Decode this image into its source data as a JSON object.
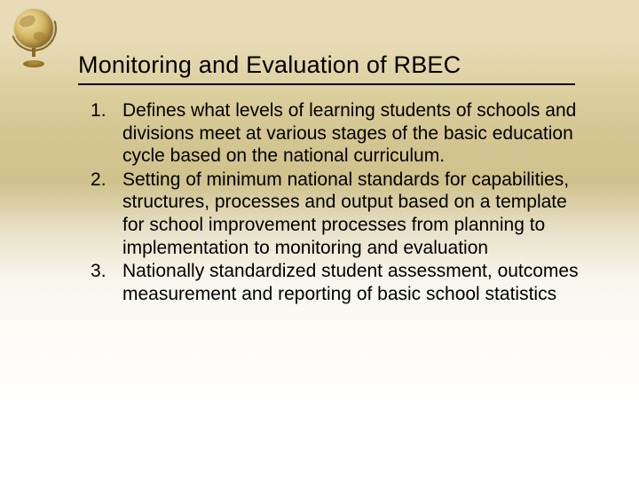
{
  "slide": {
    "title": "Monitoring and Evaluation of RBEC",
    "title_fontsize": 27,
    "title_color": "#000000",
    "underline_color": "#000000",
    "body_fontsize": 21,
    "body_color": "#000000",
    "background_gradient": [
      "#e8dcb8",
      "#d0c28c",
      "#ffffff"
    ],
    "icon": "globe-icon",
    "items": [
      "Defines  what levels of learning  students of schools and divisions meet at various stages of the basic education cycle based on the national curriculum.",
      "Setting of minimum national standards for capabilities, structures, processes and output based on a template for school improvement processes from planning to implementation to monitoring and evaluation",
      "Nationally standardized student assessment, outcomes measurement and reporting of basic school statistics"
    ]
  }
}
